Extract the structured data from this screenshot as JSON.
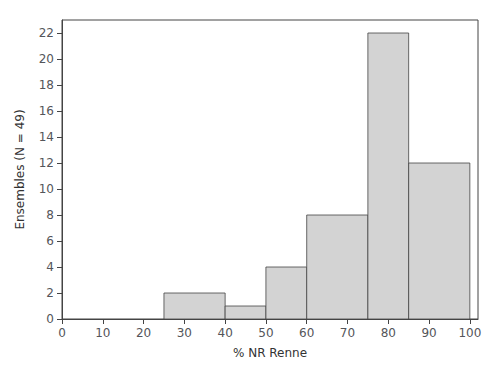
{
  "chart_data": {
    "type": "histogram",
    "xlabel": "% NR Renne",
    "ylabel": "Ensembles (N = 49)",
    "bins": [
      25,
      40,
      50,
      60,
      75,
      85,
      100
    ],
    "counts": [
      2,
      1,
      4,
      8,
      22,
      12
    ],
    "color": "#d3d3d3",
    "xlim": [
      0,
      102
    ],
    "ylim": [
      0,
      23
    ],
    "xticks": [
      0,
      10,
      20,
      30,
      40,
      50,
      60,
      70,
      80,
      90,
      100
    ],
    "yticks": [
      0,
      2,
      4,
      6,
      8,
      10,
      12,
      14,
      16,
      18,
      20,
      22
    ],
    "grid": false
  }
}
